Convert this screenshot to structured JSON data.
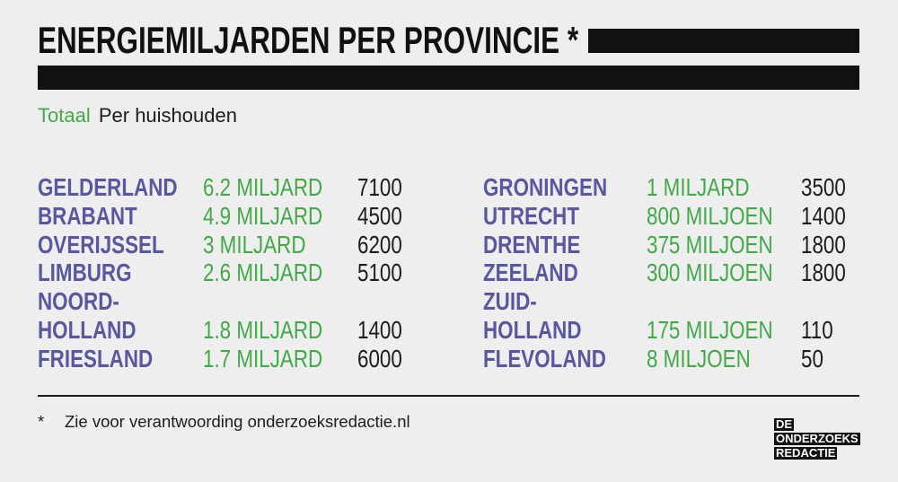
{
  "chart_data": {
    "type": "table",
    "title": "ENERGIEMILJARDEN PER PROVINCIE *",
    "columns": [
      "Totaal",
      "Per huishouden"
    ],
    "rows": [
      {
        "province": "GELDERLAND",
        "totaal": "6.2 MILJARD",
        "per_huishouden": 7100
      },
      {
        "province": "BRABANT",
        "totaal": "4.9 MILJARD",
        "per_huishouden": 4500
      },
      {
        "province": "OVERIJSSEL",
        "totaal": "3 MILJARD",
        "per_huishouden": 6200
      },
      {
        "province": "LIMBURG",
        "totaal": "2.6 MILJARD",
        "per_huishouden": 5100
      },
      {
        "province": "NOORD-HOLLAND",
        "totaal": "1.8 MILJARD",
        "per_huishouden": 1400
      },
      {
        "province": "FRIESLAND",
        "totaal": "1.7 MILJARD",
        "per_huishouden": 6000
      },
      {
        "province": "GRONINGEN",
        "totaal": "1 MILJARD",
        "per_huishouden": 3500
      },
      {
        "province": "UTRECHT",
        "totaal": "800 MILJOEN",
        "per_huishouden": 1400
      },
      {
        "province": "DRENTHE",
        "totaal": "375 MILJOEN",
        "per_huishouden": 1800
      },
      {
        "province": "ZEELAND",
        "totaal": "300 MILJOEN",
        "per_huishouden": 1800
      },
      {
        "province": "ZUID-HOLLAND",
        "totaal": "175 MILJOEN",
        "per_huishouden": 110
      },
      {
        "province": "FLEVOLAND",
        "totaal": "8 MILJOEN",
        "per_huishouden": 50
      }
    ]
  },
  "footnote": {
    "marker": "*",
    "text": "Zie voor verantwoording onderzoeksredactie.nl"
  },
  "logo": {
    "lines": [
      "DE",
      "ONDERZOEKS",
      "REDACTIE"
    ]
  },
  "colors": {
    "background": "#eeeeee",
    "title": "#111111",
    "bars": "#111111",
    "province": "#57589f",
    "totaal": "#41a948",
    "per_huishouden": "#1c1c1c",
    "logo_box": "#111111",
    "logo_text": "#ffffff"
  }
}
